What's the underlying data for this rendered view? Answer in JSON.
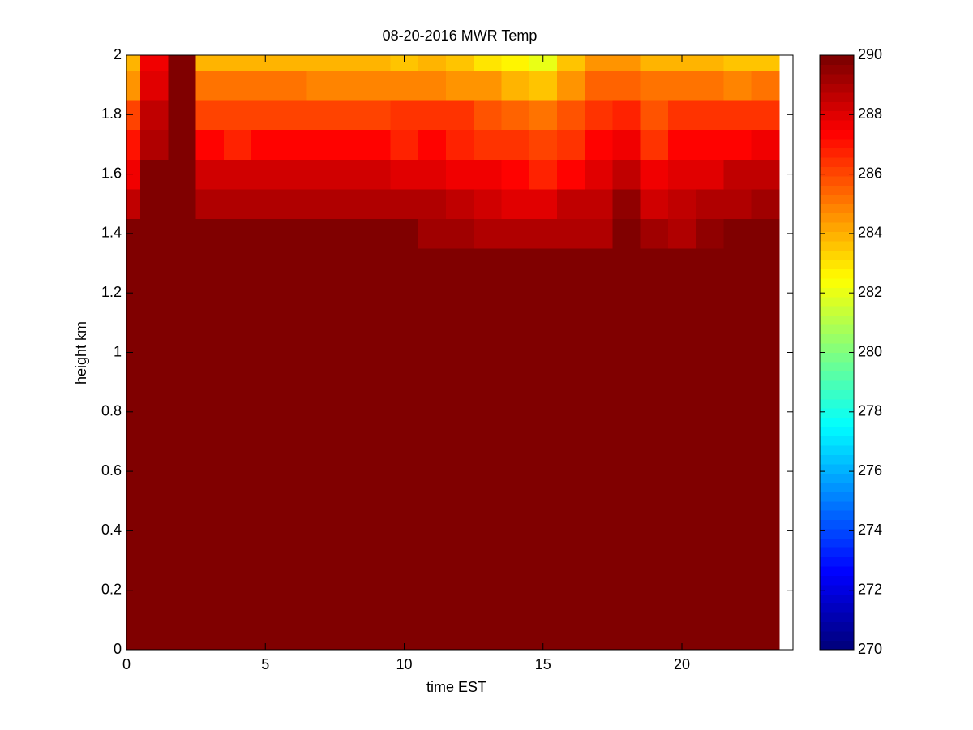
{
  "chart_data": {
    "type": "heatmap",
    "title": "08-20-2016 MWR Temp",
    "xlabel": "time EST",
    "ylabel": "height km",
    "x": [
      0,
      1,
      2,
      3,
      4,
      5,
      6,
      7,
      8,
      9,
      10,
      11,
      12,
      13,
      14,
      15,
      16,
      17,
      18,
      19,
      20,
      21,
      22,
      23
    ],
    "y": [
      0,
      0.1,
      0.2,
      0.3,
      0.4,
      0.5,
      0.6,
      0.7,
      0.8,
      0.9,
      1,
      1.1,
      1.2,
      1.3,
      1.4,
      1.5,
      1.6,
      1.7,
      1.8,
      1.9,
      2
    ],
    "z": [
      [
        290,
        290,
        290,
        290,
        290,
        290,
        290,
        290,
        290,
        290,
        290,
        290,
        290,
        290,
        290,
        290,
        290,
        290,
        290,
        290,
        290,
        290,
        290,
        290
      ],
      [
        290,
        290,
        290,
        290,
        290,
        290,
        290,
        290,
        290,
        290,
        290,
        290,
        290,
        290,
        290,
        290,
        290,
        290,
        290,
        290,
        290,
        290,
        290,
        290
      ],
      [
        290,
        290,
        290,
        290,
        290,
        290,
        290,
        290,
        290,
        290,
        290,
        290,
        290,
        290,
        290,
        290,
        290,
        290,
        290,
        290,
        290,
        290,
        290,
        290
      ],
      [
        290,
        290,
        290,
        290,
        290,
        290,
        290,
        290,
        290,
        290,
        290,
        290,
        290,
        290,
        290,
        290,
        290,
        290,
        290,
        290,
        290,
        290,
        290,
        290
      ],
      [
        290,
        290,
        290,
        290,
        290,
        290,
        290,
        290,
        290,
        290,
        290,
        290,
        290,
        290,
        290,
        290,
        290,
        290,
        290,
        290,
        290,
        290,
        290,
        290
      ],
      [
        290,
        290,
        290,
        290,
        290,
        290,
        290,
        290,
        290,
        290,
        290,
        290,
        290,
        290,
        290,
        290,
        290,
        290,
        290,
        290,
        290,
        290,
        290,
        290
      ],
      [
        290,
        290,
        290,
        290,
        290,
        290,
        290,
        290,
        290,
        290,
        290,
        290,
        290,
        290,
        290,
        290,
        290,
        290,
        290,
        290,
        290,
        290,
        290,
        290
      ],
      [
        290,
        290,
        290,
        290,
        290,
        290,
        290,
        290,
        290,
        290,
        290,
        290,
        290,
        290,
        290,
        290,
        290,
        290,
        290,
        290,
        290,
        290,
        290,
        290
      ],
      [
        290,
        290,
        290,
        290,
        290,
        290,
        290,
        290,
        290,
        290,
        290,
        290,
        290,
        290,
        290,
        290,
        290,
        290,
        290,
        290,
        290,
        290,
        290,
        290
      ],
      [
        290,
        290,
        290,
        290,
        290,
        290,
        290,
        290,
        290,
        290,
        290,
        290,
        290,
        290,
        290,
        290,
        290,
        290,
        290,
        290,
        290,
        290,
        290,
        290
      ],
      [
        290,
        290,
        290,
        290,
        290,
        290,
        290,
        290,
        290,
        290,
        290,
        290,
        290,
        290,
        290,
        290,
        290,
        290,
        290,
        290,
        290,
        290,
        290,
        290
      ],
      [
        290,
        290,
        290,
        290,
        290,
        290,
        290,
        290,
        290,
        290,
        290,
        290,
        290,
        290,
        290,
        290,
        290,
        290,
        290,
        290,
        290,
        290,
        290,
        290
      ],
      [
        290,
        290,
        290,
        290,
        290,
        290,
        290,
        290,
        290,
        290,
        290,
        290,
        290,
        290,
        290,
        290,
        290,
        290,
        290,
        290,
        290,
        290,
        290,
        290
      ],
      [
        290,
        290,
        290,
        290,
        290,
        290,
        290,
        290,
        290,
        290,
        290,
        290,
        290,
        290,
        290,
        290,
        290,
        290,
        290,
        290,
        290,
        290,
        290,
        290
      ],
      [
        290,
        290,
        290,
        290,
        290,
        290,
        290,
        290,
        290,
        290,
        290,
        289.3,
        289.3,
        289,
        288.8,
        288.8,
        288.8,
        289,
        290,
        289.2,
        289,
        289.5,
        290,
        290
      ],
      [
        288.5,
        290,
        290,
        289,
        289,
        289,
        289,
        289,
        289,
        289,
        288.8,
        288.8,
        288.5,
        288.3,
        288,
        288,
        288.5,
        288.5,
        289.5,
        288.3,
        288.6,
        289,
        289,
        289.3
      ],
      [
        287.5,
        290,
        290,
        288.2,
        288.2,
        288.2,
        288.2,
        288.2,
        288.2,
        288.2,
        287.9,
        287.9,
        287.5,
        287.5,
        287.3,
        286.8,
        287.3,
        288,
        288.5,
        287.5,
        288,
        288,
        288.5,
        288.5
      ],
      [
        287,
        289,
        290,
        287.2,
        286.8,
        287.3,
        287.3,
        287.3,
        287.3,
        287.3,
        286.6,
        287.3,
        286.8,
        286.5,
        286.3,
        286,
        286.5,
        287.3,
        287.6,
        286.3,
        287.3,
        287.3,
        287.3,
        287.6
      ],
      [
        286,
        288.5,
        290,
        286,
        286.2,
        286.2,
        286.2,
        286.2,
        286.2,
        286.2,
        286.3,
        286.3,
        286.3,
        285.8,
        285.5,
        285,
        285.7,
        286.3,
        286.8,
        285.7,
        286.3,
        286.3,
        286.3,
        286.3
      ],
      [
        284.5,
        288,
        290,
        285,
        285,
        285,
        285,
        284.8,
        284.8,
        284.8,
        284.8,
        284.8,
        284.5,
        284.5,
        284,
        283.5,
        284.5,
        285.5,
        285.5,
        285,
        285.3,
        285.3,
        284.8,
        285
      ],
      [
        284,
        287.5,
        290,
        283.8,
        283.8,
        283.8,
        283.8,
        283.8,
        283.8,
        283.8,
        283.5,
        284,
        283.5,
        283,
        282.5,
        282,
        283.5,
        284.5,
        284.5,
        284,
        284,
        284,
        283.5,
        283.5
      ]
    ],
    "xlim": [
      0,
      24
    ],
    "xticks": [
      0,
      5,
      10,
      15,
      20
    ],
    "ylim": [
      0,
      2
    ],
    "yticks": [
      0,
      0.2,
      0.4,
      0.6,
      0.8,
      1,
      1.2,
      1.4,
      1.6,
      1.8,
      2
    ],
    "clim": [
      270,
      290
    ],
    "cticks": [
      270,
      272,
      274,
      276,
      278,
      280,
      282,
      284,
      286,
      288,
      290
    ],
    "colormap": "jet"
  }
}
